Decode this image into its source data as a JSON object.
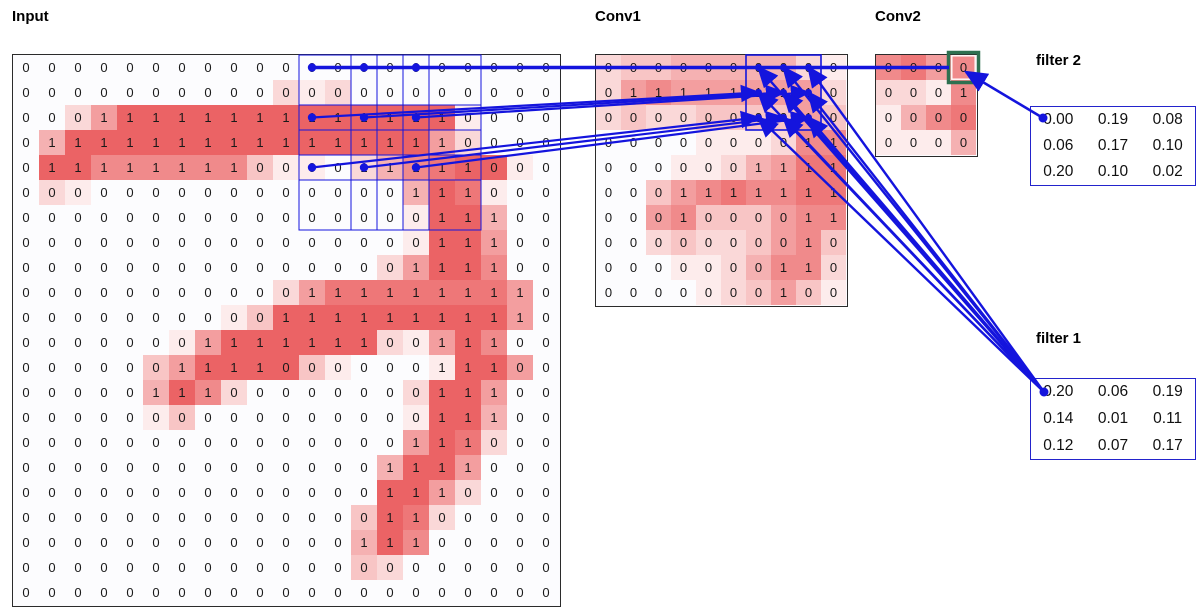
{
  "labels": {
    "input": "Input",
    "conv1": "Conv1",
    "conv2": "Conv2",
    "filter1": "filter 1",
    "filter2": "filter 2"
  },
  "colors": {
    "heat_max": "#e63c3e",
    "zero_bg": "#fcfcfe",
    "line_blue": "#1414dd",
    "filter_border": "#2323cc",
    "green_box": "#2e7050",
    "grid_border": "#2b2b2b",
    "digit": "#191919"
  },
  "input_grid": {
    "rows": 22,
    "cols": 21,
    "values": [
      "000000000000000000000",
      "000000000000000000000",
      "000111111111111110000",
      "011111111111111110000",
      "011111111000011111000",
      "000000000000000111000",
      "000000000000000011100",
      "000000000000000011100",
      "000000000000000111100",
      "000000000001111111110",
      "000000000011111111110",
      "000000011111110011100",
      "000000111100000011100",
      "000001110000000011100",
      "000000000000000011100",
      "000000000000000111000",
      "000000000000001111000",
      "000000000000001110000",
      "000000000000001100000",
      "000000000000011100000",
      "000000000000000000000",
      "000000000000000000000"
    ],
    "intensity": [
      "000000000000000000000",
      "000000000021200000000",
      "002588888888888881000",
      "048888888888888852000",
      "088666666311024678810",
      "021000000000000487100",
      "000000000000000188400",
      "000000000000000188500",
      "000000000000002588600",
      "000000000025777777750",
      "000000001388888888850",
      "000000158888882158600",
      "000003588883100018850",
      "000004862000000288500",
      "000001300000000188400",
      "000000000000000587200",
      "000000000000004885000",
      "000000000000008852000",
      "000000000000038720000",
      "000000000000048600000",
      "000000000000032000000",
      "000000000000000000000"
    ]
  },
  "conv1_grid": {
    "rows": 10,
    "cols": 10,
    "values": [
      "0000000000",
      "0111111110",
      "0000000010",
      "0000000011",
      "0000001111",
      "0001111111",
      "0001000011",
      "0000000010",
      "0000000110",
      "0000000100"
    ],
    "intensity": [
      "2334444421",
      "2565555552",
      "2322333353",
      "0000111266",
      "0001124577",
      "0035676677",
      "0056333566",
      "0023223563",
      "0001124662",
      "0000123531"
    ]
  },
  "conv2_grid": {
    "rows": 4,
    "cols": 4,
    "values": [
      "0000",
      "0001",
      "0000",
      "0000"
    ],
    "intensity": [
      "6756",
      "2216",
      "1467",
      "1114"
    ]
  },
  "filters": {
    "f2": {
      "rows": [
        [
          "0.00",
          "0.19",
          "0.08"
        ],
        [
          "0.06",
          "0.17",
          "0.10"
        ],
        [
          "0.20",
          "0.10",
          "0.02"
        ]
      ]
    },
    "f1": {
      "rows": [
        [
          "0.20",
          "0.06",
          "0.19"
        ],
        [
          "0.14",
          "0.01",
          "0.11"
        ],
        [
          "0.12",
          "0.07",
          "0.17"
        ]
      ]
    }
  },
  "receptive_field": {
    "input_anchor_rows": [
      0,
      2,
      4
    ],
    "input_anchor_cols": [
      11,
      13,
      15
    ],
    "patch_rows": 3,
    "patch_cols": 3,
    "conv1_box": {
      "row": 0,
      "col": 6,
      "size": 3
    },
    "conv2_highlight": {
      "row": 0,
      "col": 3
    }
  }
}
